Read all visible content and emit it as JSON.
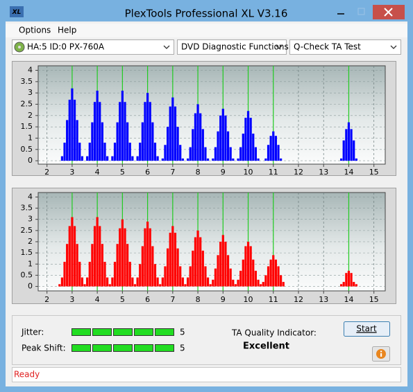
{
  "window": {
    "icon_label": "XL",
    "title": "PlexTools Professional XL V3.16"
  },
  "menu": [
    "Options",
    "Help"
  ],
  "toolbar": {
    "drive": "HA:5 ID:0  PX-760A",
    "function": "DVD Diagnostic Functions",
    "test": "Q-Check TA Test"
  },
  "chart_data": [
    {
      "type": "bar",
      "color": "#0000ff",
      "grid": true,
      "xlim": [
        1.65,
        15.45
      ],
      "ylim": [
        -0.15,
        4.2
      ],
      "xticks": [
        2,
        3,
        4,
        5,
        6,
        7,
        8,
        9,
        10,
        11,
        12,
        13,
        14,
        15
      ],
      "yticks": [
        0,
        0.5,
        1,
        1.5,
        2,
        2.5,
        3,
        3.5,
        4
      ],
      "reference_lines": [
        3,
        4,
        5,
        6,
        7,
        8,
        9,
        10,
        11,
        14
      ],
      "reference_color": "#22cc22",
      "x": [
        2.5,
        2.6,
        2.7,
        2.8,
        2.9,
        3,
        3.1,
        3.2,
        3.3,
        3.4,
        3.5,
        3.6,
        3.7,
        3.8,
        3.9,
        4,
        4.1,
        4.2,
        4.3,
        4.4,
        4.5,
        4.6,
        4.7,
        4.8,
        4.9,
        5,
        5.1,
        5.2,
        5.3,
        5.4,
        5.5,
        5.6,
        5.7,
        5.8,
        5.9,
        6,
        6.1,
        6.2,
        6.3,
        6.4,
        6.5,
        6.6,
        6.7,
        6.8,
        6.9,
        7,
        7.1,
        7.2,
        7.3,
        7.4,
        7.5,
        7.6,
        7.7,
        7.8,
        7.9,
        8,
        8.1,
        8.2,
        8.3,
        8.4,
        8.5,
        8.6,
        8.7,
        8.8,
        8.9,
        9,
        9.1,
        9.2,
        9.3,
        9.4,
        9.5,
        9.6,
        9.7,
        9.8,
        9.9,
        10,
        10.1,
        10.2,
        10.3,
        10.4,
        10.5,
        10.6,
        10.7,
        10.8,
        10.9,
        11,
        11.1,
        11.2,
        11.3,
        11.4,
        11.5,
        11.6,
        11.7,
        11.8,
        11.9,
        12,
        12.1,
        12.2,
        12.3,
        12.4,
        12.5,
        12.6,
        12.7,
        12.8,
        12.9,
        13,
        13.1,
        13.2,
        13.3,
        13.4,
        13.5,
        13.6,
        13.7,
        13.8,
        13.9,
        14,
        14.1,
        14.2,
        14.3,
        14.4,
        14.5
      ],
      "values": [
        0,
        0.2,
        0.8,
        1.8,
        2.7,
        3.2,
        2.7,
        1.8,
        0.8,
        0.2,
        0,
        0.2,
        0.8,
        1.7,
        2.6,
        3.1,
        2.6,
        1.7,
        0.8,
        0.2,
        0,
        0.2,
        0.8,
        1.7,
        2.6,
        3.1,
        2.6,
        1.7,
        0.8,
        0.2,
        0,
        0.2,
        0.8,
        1.7,
        2.6,
        3.0,
        2.6,
        1.7,
        0.8,
        0.2,
        0,
        0.1,
        0.7,
        1.5,
        2.4,
        2.8,
        2.4,
        1.5,
        0.7,
        0.1,
        0,
        0.1,
        0.6,
        1.4,
        2.1,
        2.5,
        2.1,
        1.4,
        0.6,
        0.1,
        0,
        0.1,
        0.6,
        1.3,
        2.0,
        2.3,
        2.0,
        1.3,
        0.6,
        0.1,
        0,
        0.1,
        0.6,
        1.2,
        1.9,
        2.2,
        1.9,
        1.2,
        0.6,
        0.1,
        0,
        0,
        0.1,
        0.7,
        1.1,
        1.3,
        1.1,
        0.7,
        0.1,
        0,
        0,
        0,
        0,
        0,
        0,
        0,
        0,
        0,
        0,
        0,
        0,
        0,
        0,
        0,
        0,
        0,
        0,
        0,
        0,
        0,
        0,
        0,
        0.1,
        0.9,
        1.4,
        1.7,
        1.4,
        0.9,
        0.1,
        0,
        0
      ]
    },
    {
      "type": "bar",
      "color": "#ff0000",
      "grid": true,
      "xlim": [
        1.65,
        15.45
      ],
      "ylim": [
        -0.2,
        4.2
      ],
      "xticks": [
        2,
        3,
        4,
        5,
        6,
        7,
        8,
        9,
        10,
        11,
        12,
        13,
        14,
        15
      ],
      "yticks": [
        0,
        0.5,
        1,
        1.5,
        2,
        2.5,
        3,
        3.5,
        4
      ],
      "reference_lines": [
        3,
        4,
        5,
        6,
        7,
        8,
        9,
        10,
        11,
        14
      ],
      "reference_color": "#22cc22",
      "x": [
        2.5,
        2.6,
        2.7,
        2.8,
        2.9,
        3,
        3.1,
        3.2,
        3.3,
        3.4,
        3.5,
        3.6,
        3.7,
        3.8,
        3.9,
        4,
        4.1,
        4.2,
        4.3,
        4.4,
        4.5,
        4.6,
        4.7,
        4.8,
        4.9,
        5,
        5.1,
        5.2,
        5.3,
        5.4,
        5.5,
        5.6,
        5.7,
        5.8,
        5.9,
        6,
        6.1,
        6.2,
        6.3,
        6.4,
        6.5,
        6.6,
        6.7,
        6.8,
        6.9,
        7,
        7.1,
        7.2,
        7.3,
        7.4,
        7.5,
        7.6,
        7.7,
        7.8,
        7.9,
        8,
        8.1,
        8.2,
        8.3,
        8.4,
        8.5,
        8.6,
        8.7,
        8.8,
        8.9,
        9,
        9.1,
        9.2,
        9.3,
        9.4,
        9.5,
        9.6,
        9.7,
        9.8,
        9.9,
        10,
        10.1,
        10.2,
        10.3,
        10.4,
        10.5,
        10.6,
        10.7,
        10.8,
        10.9,
        11,
        11.1,
        11.2,
        11.3,
        11.4,
        11.5,
        11.6,
        11.7,
        11.8,
        11.9,
        12,
        12.1,
        12.2,
        12.3,
        12.4,
        12.5,
        12.6,
        12.7,
        12.8,
        12.9,
        13,
        13.1,
        13.2,
        13.3,
        13.4,
        13.5,
        13.6,
        13.7,
        13.8,
        13.9,
        14,
        14.1,
        14.2,
        14.3,
        14.4,
        14.5
      ],
      "values": [
        0.1,
        0.4,
        1.1,
        1.9,
        2.7,
        3.1,
        2.7,
        1.9,
        1.1,
        0.4,
        0.1,
        0.4,
        1.1,
        1.9,
        2.7,
        3.1,
        2.7,
        1.9,
        1.1,
        0.4,
        0.1,
        0.4,
        1.1,
        1.9,
        2.6,
        3.0,
        2.6,
        1.9,
        1.1,
        0.4,
        0.1,
        0.4,
        1.0,
        1.8,
        2.6,
        2.9,
        2.6,
        1.8,
        1.0,
        0.4,
        0.1,
        0.4,
        0.9,
        1.7,
        2.4,
        2.7,
        2.4,
        1.7,
        0.9,
        0.4,
        0.1,
        0.4,
        0.9,
        1.6,
        2.2,
        2.5,
        2.2,
        1.6,
        0.9,
        0.4,
        0.1,
        0.3,
        0.8,
        1.4,
        2.0,
        2.3,
        2.0,
        1.4,
        0.8,
        0.3,
        0.1,
        0.3,
        0.7,
        1.2,
        1.8,
        2.0,
        1.8,
        1.2,
        0.7,
        0.3,
        0.1,
        0.2,
        0.5,
        0.9,
        1.2,
        1.4,
        1.2,
        0.9,
        0.5,
        0.2,
        0,
        0,
        0,
        0,
        0,
        0,
        0,
        0,
        0,
        0,
        0,
        0,
        0,
        0,
        0,
        0,
        0,
        0,
        0,
        0,
        0,
        0,
        0.1,
        0.2,
        0.6,
        0.7,
        0.6,
        0.2,
        0.1,
        0,
        0
      ]
    }
  ],
  "results": {
    "jitter_label": "Jitter:",
    "jitter": 5,
    "peak_shift_label": "Peak Shift:",
    "peak_shift": 5,
    "ta_label": "TA Quality Indicator:",
    "ta_rating": "Excellent",
    "start_button": "Start"
  },
  "status": "Ready"
}
